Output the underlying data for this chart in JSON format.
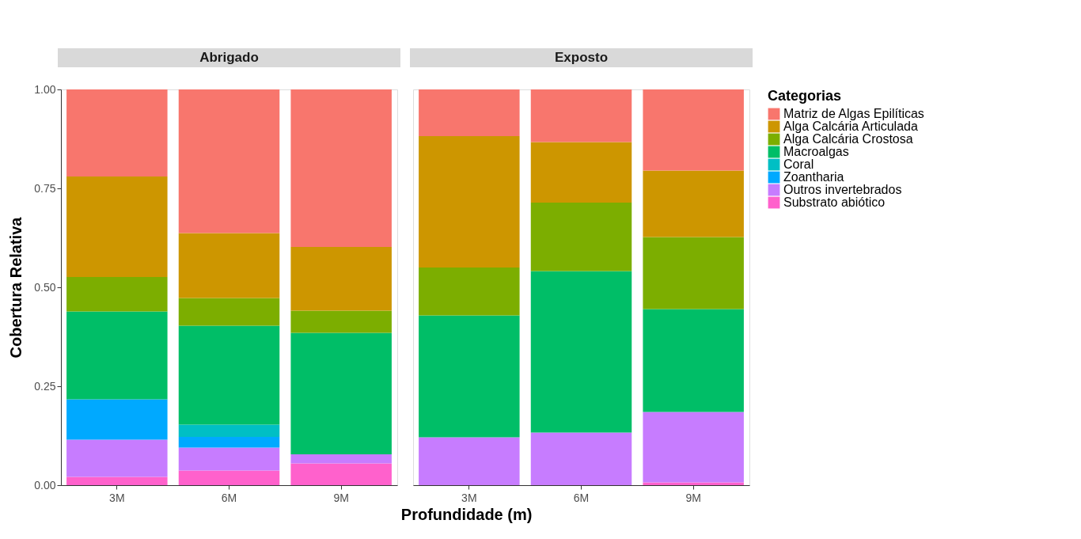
{
  "chart_data": [
    {
      "type": "bar",
      "title": "Abrigado",
      "stacked": true,
      "categories": [
        "3M",
        "6M",
        "9M"
      ],
      "ylabel": "Cobertura Relativa",
      "xlabel": "Profundidade (m)",
      "ylim": [
        0,
        1
      ],
      "yticks": [
        {
          "value": 0,
          "label": "0.00"
        },
        {
          "value": 0.25,
          "label": "0.25"
        },
        {
          "value": 0.5,
          "label": "0.50"
        },
        {
          "value": 0.75,
          "label": "0.75"
        },
        {
          "value": 1,
          "label": "1.00"
        }
      ],
      "grid": false,
      "legend": "right",
      "legend_title": "Categorias",
      "series": [
        {
          "name": "Substrato abiótico",
          "color": "#ff61cc",
          "values": [
            0.021,
            0.037,
            0.055
          ]
        },
        {
          "name": "Outros invertebrados",
          "color": "#c77cff",
          "values": [
            0.094,
            0.058,
            0.023
          ]
        },
        {
          "name": "Zoantharia",
          "color": "#00a9ff",
          "values": [
            0.102,
            0.027,
            0
          ]
        },
        {
          "name": "Coral",
          "color": "#00bfc4",
          "values": [
            0,
            0.031,
            0
          ]
        },
        {
          "name": "Macroalgas",
          "color": "#00be67",
          "values": [
            0.222,
            0.25,
            0.307
          ]
        },
        {
          "name": "Alga Calcária Crostosa",
          "color": "#7cae00",
          "values": [
            0.087,
            0.07,
            0.056
          ]
        },
        {
          "name": "Alga Calcária Articulada",
          "color": "#cd9600",
          "values": [
            0.254,
            0.164,
            0.161
          ]
        },
        {
          "name": "Matriz de Algas Epilíticas",
          "color": "#f8766d",
          "values": [
            0.22,
            0.363,
            0.398
          ]
        }
      ]
    },
    {
      "type": "bar",
      "title": "Exposto",
      "stacked": true,
      "categories": [
        "3M",
        "6M",
        "9M"
      ],
      "ylim": [
        0,
        1
      ],
      "tick_labels": "x",
      "grid": false,
      "legend": "right",
      "series": [
        {
          "name": "Substrato abiótico",
          "color": "#ff61cc",
          "values": [
            0,
            0,
            0.007
          ]
        },
        {
          "name": "Outros invertebrados",
          "color": "#c77cff",
          "values": [
            0.121,
            0.133,
            0.178
          ]
        },
        {
          "name": "Zoantharia",
          "color": "#00a9ff",
          "values": [
            0,
            0,
            0
          ]
        },
        {
          "name": "Coral",
          "color": "#00bfc4",
          "values": [
            0,
            0,
            0
          ]
        },
        {
          "name": "Macroalgas",
          "color": "#00be67",
          "values": [
            0.308,
            0.408,
            0.26
          ]
        },
        {
          "name": "Alga Calcária Crostosa",
          "color": "#7cae00",
          "values": [
            0.121,
            0.173,
            0.182
          ]
        },
        {
          "name": "Alga Calcária Articulada",
          "color": "#cd9600",
          "values": [
            0.332,
            0.153,
            0.168
          ]
        },
        {
          "name": "Matriz de Algas Epilíticas",
          "color": "#f8766d",
          "values": [
            0.118,
            0.133,
            0.205
          ]
        }
      ]
    }
  ]
}
